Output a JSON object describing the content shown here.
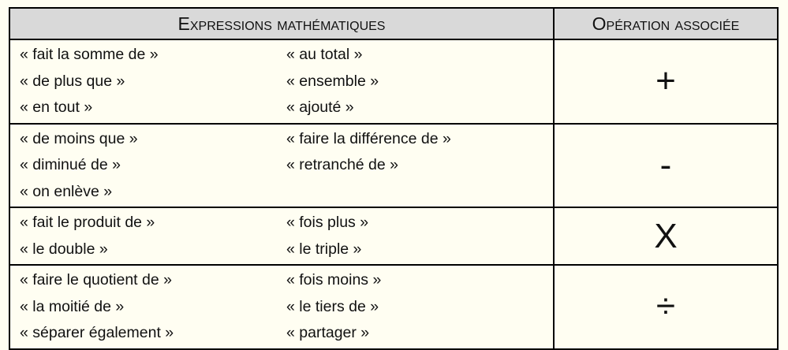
{
  "table": {
    "headers": [
      "Expressions mathématiques",
      "Opération associée"
    ],
    "rows": [
      {
        "left": [
          "« fait la somme de »",
          "« de plus que »",
          "« en tout »"
        ],
        "right": [
          "« au total »",
          "« ensemble »",
          "« ajouté »"
        ],
        "operation": "+"
      },
      {
        "left": [
          "« de moins que »",
          "« diminué de »",
          "« on enlève »"
        ],
        "right": [
          "« faire la différence de »",
          "« retranché de »"
        ],
        "operation": "-"
      },
      {
        "left": [
          "« fait le produit de »",
          "« le double »"
        ],
        "right": [
          "« fois plus »",
          "« le triple »"
        ],
        "operation": "X"
      },
      {
        "left": [
          "« faire le quotient de »",
          "« la moitié de »",
          "« séparer également »"
        ],
        "right": [
          "« fois moins »",
          "« le tiers de »",
          "« partager »"
        ],
        "operation": "÷"
      }
    ]
  }
}
